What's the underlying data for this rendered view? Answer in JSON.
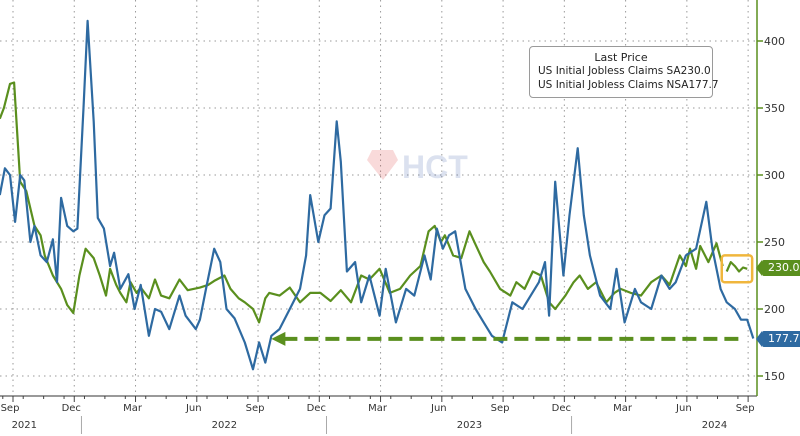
{
  "colors": {
    "sa": "#5a8f1e",
    "nsa": "#2e6aa1",
    "highlight": "#f0b63c",
    "grid": "#9a9a9a"
  },
  "legend": {
    "title": "Last Price",
    "items": [
      {
        "name": "US Initial Jobless Claims SA",
        "value": "230.0"
      },
      {
        "name": "US Initial Jobless Claims NSA",
        "value": "177.7"
      }
    ]
  },
  "tags": {
    "sa": "230.0",
    "nsa": "177.7"
  },
  "chart_data": {
    "type": "line",
    "title": "",
    "xlabel": "",
    "ylabel": "",
    "x_units": "months since Sep 2021",
    "ylim": [
      140,
      420
    ],
    "yticks": [
      150,
      200,
      250,
      300,
      350,
      400
    ],
    "grid": true,
    "legend_position": "top-right",
    "xticks": [
      {
        "m": 0,
        "label": "Sep"
      },
      {
        "m": 3,
        "label": "Dec"
      },
      {
        "m": 6,
        "label": "Mar"
      },
      {
        "m": 9,
        "label": "Jun"
      },
      {
        "m": 12,
        "label": "Sep"
      },
      {
        "m": 15,
        "label": "Dec"
      },
      {
        "m": 18,
        "label": "Mar"
      },
      {
        "m": 21,
        "label": "Jun"
      },
      {
        "m": 24,
        "label": "Sep"
      },
      {
        "m": 27,
        "label": "Dec"
      },
      {
        "m": 30,
        "label": "Mar"
      },
      {
        "m": 33,
        "label": "Jun"
      },
      {
        "m": 36,
        "label": "Sep"
      }
    ],
    "years": [
      {
        "m": 0.7,
        "label": "2021"
      },
      {
        "m": 10.5,
        "label": "2022"
      },
      {
        "m": 22.5,
        "label": "2023"
      },
      {
        "m": 34.5,
        "label": "2024"
      }
    ],
    "year_dividers": [
      3.5,
      15.5,
      27.5
    ],
    "reference_line": {
      "value": 177.7,
      "from_m": 12.8,
      "to_m": 36
    },
    "series": [
      {
        "name": "US Initial Jobless Claims SA",
        "key": "sa",
        "points": [
          [
            -0.5,
            342
          ],
          [
            -0.3,
            350
          ],
          [
            0,
            368
          ],
          [
            0.2,
            369
          ],
          [
            0.5,
            295
          ],
          [
            0.8,
            288
          ],
          [
            1.2,
            262
          ],
          [
            1.5,
            255
          ],
          [
            1.7,
            240
          ],
          [
            2.1,
            225
          ],
          [
            2.5,
            215
          ],
          [
            2.8,
            203
          ],
          [
            3.1,
            197
          ],
          [
            3.4,
            225
          ],
          [
            3.7,
            245
          ],
          [
            4.1,
            238
          ],
          [
            4.4,
            225
          ],
          [
            4.7,
            210
          ],
          [
            4.9,
            230
          ],
          [
            5.2,
            218
          ],
          [
            5.4,
            212
          ],
          [
            5.7,
            205
          ],
          [
            5.9,
            220
          ],
          [
            6.2,
            212
          ],
          [
            6.4,
            216
          ],
          [
            6.8,
            208
          ],
          [
            7.1,
            222
          ],
          [
            7.4,
            210
          ],
          [
            7.8,
            208
          ],
          [
            8.3,
            222
          ],
          [
            8.7,
            214
          ],
          [
            9.3,
            216
          ],
          [
            9.7,
            218
          ],
          [
            10,
            221
          ],
          [
            10.5,
            225
          ],
          [
            10.8,
            215
          ],
          [
            11.2,
            208
          ],
          [
            11.5,
            205
          ],
          [
            11.9,
            200
          ],
          [
            12.2,
            190
          ],
          [
            12.5,
            208
          ],
          [
            12.7,
            212
          ],
          [
            13.2,
            210
          ],
          [
            13.7,
            216
          ],
          [
            14.2,
            205
          ],
          [
            14.7,
            212
          ],
          [
            15.2,
            212
          ],
          [
            15.7,
            206
          ],
          [
            16.2,
            214
          ],
          [
            16.7,
            205
          ],
          [
            17.2,
            225
          ],
          [
            17.6,
            222
          ],
          [
            18.1,
            230
          ],
          [
            18.6,
            212
          ],
          [
            19.1,
            215
          ],
          [
            19.6,
            225
          ],
          [
            20.1,
            232
          ],
          [
            20.5,
            258
          ],
          [
            20.8,
            262
          ],
          [
            21.1,
            250
          ],
          [
            21.3,
            255
          ],
          [
            21.7,
            240
          ],
          [
            22.1,
            238
          ],
          [
            22.5,
            258
          ],
          [
            22.8,
            248
          ],
          [
            23.2,
            235
          ],
          [
            23.5,
            228
          ],
          [
            24,
            215
          ],
          [
            24.5,
            210
          ],
          [
            24.8,
            220
          ],
          [
            25.2,
            215
          ],
          [
            25.6,
            228
          ],
          [
            26,
            225
          ],
          [
            26.4,
            205
          ],
          [
            26.7,
            200
          ],
          [
            27.2,
            210
          ],
          [
            27.6,
            220
          ],
          [
            27.9,
            225
          ],
          [
            28.3,
            215
          ],
          [
            28.7,
            220
          ],
          [
            29.2,
            205
          ],
          [
            29.6,
            212
          ],
          [
            29.9,
            215
          ],
          [
            30.4,
            212
          ],
          [
            30.9,
            210
          ],
          [
            31.4,
            220
          ],
          [
            31.9,
            225
          ],
          [
            32.3,
            218
          ],
          [
            32.8,
            240
          ],
          [
            33.1,
            232
          ],
          [
            33.3,
            245
          ],
          [
            33.6,
            230
          ],
          [
            33.8,
            247
          ],
          [
            34.2,
            235
          ],
          [
            34.6,
            249
          ],
          [
            34.9,
            232
          ]
        ]
      },
      {
        "name": "US Initial Jobless Claims SA (latest)",
        "key": "sa_recent",
        "points": [
          [
            35.1,
            228
          ],
          [
            35.3,
            235
          ],
          [
            35.5,
            232
          ],
          [
            35.7,
            228
          ],
          [
            35.9,
            231
          ],
          [
            36.1,
            230
          ]
        ]
      },
      {
        "name": "US Initial Jobless Claims NSA",
        "key": "nsa",
        "points": [
          [
            -0.5,
            285
          ],
          [
            -0.25,
            305
          ],
          [
            0,
            300
          ],
          [
            0.25,
            265
          ],
          [
            0.5,
            300
          ],
          [
            0.7,
            296
          ],
          [
            1,
            250
          ],
          [
            1.2,
            262
          ],
          [
            1.5,
            240
          ],
          [
            1.8,
            235
          ],
          [
            2.1,
            252
          ],
          [
            2.3,
            220
          ],
          [
            2.5,
            283
          ],
          [
            2.8,
            262
          ],
          [
            3.1,
            258
          ],
          [
            3.3,
            260
          ],
          [
            3.6,
            350
          ],
          [
            3.6,
            350
          ],
          [
            3.8,
            415
          ],
          [
            4.1,
            340
          ],
          [
            4.3,
            268
          ],
          [
            4.6,
            260
          ],
          [
            4.9,
            232
          ],
          [
            5.1,
            242
          ],
          [
            5.4,
            215
          ],
          [
            5.8,
            226
          ],
          [
            6.1,
            200
          ],
          [
            6.4,
            218
          ],
          [
            6.8,
            180
          ],
          [
            7.1,
            200
          ],
          [
            7.4,
            198
          ],
          [
            7.8,
            185
          ],
          [
            8.3,
            210
          ],
          [
            8.6,
            195
          ],
          [
            9.1,
            185
          ],
          [
            9.3,
            192
          ],
          [
            9.6,
            215
          ],
          [
            10,
            245
          ],
          [
            10.3,
            235
          ],
          [
            10.6,
            200
          ],
          [
            11,
            193
          ],
          [
            11.5,
            175
          ],
          [
            11.9,
            155
          ],
          [
            12.2,
            175
          ],
          [
            12.5,
            160
          ],
          [
            12.8,
            180
          ],
          [
            13.2,
            185
          ],
          [
            13.7,
            200
          ],
          [
            14.2,
            215
          ],
          [
            14.5,
            240
          ],
          [
            14.7,
            285
          ],
          [
            15.1,
            250
          ],
          [
            15.4,
            270
          ],
          [
            15.7,
            275
          ],
          [
            16,
            340
          ],
          [
            16.2,
            310
          ],
          [
            16.5,
            228
          ],
          [
            16.9,
            235
          ],
          [
            17.2,
            205
          ],
          [
            17.6,
            225
          ],
          [
            18.1,
            195
          ],
          [
            18.4,
            230
          ],
          [
            18.9,
            190
          ],
          [
            19.4,
            215
          ],
          [
            19.8,
            210
          ],
          [
            20.3,
            240
          ],
          [
            20.6,
            222
          ],
          [
            20.9,
            260
          ],
          [
            21.2,
            245
          ],
          [
            21.5,
            255
          ],
          [
            21.8,
            258
          ],
          [
            22.3,
            215
          ],
          [
            22.8,
            200
          ],
          [
            23.2,
            190
          ],
          [
            23.6,
            180
          ],
          [
            24.1,
            175
          ],
          [
            24.6,
            205
          ],
          [
            25.1,
            200
          ],
          [
            25.5,
            210
          ],
          [
            25.9,
            220
          ],
          [
            26.2,
            235
          ],
          [
            26.4,
            195
          ],
          [
            26.7,
            295
          ],
          [
            27.1,
            225
          ],
          [
            27.4,
            270
          ],
          [
            27.8,
            320
          ],
          [
            28.1,
            270
          ],
          [
            28.4,
            240
          ],
          [
            28.9,
            210
          ],
          [
            29.4,
            200
          ],
          [
            29.7,
            230
          ],
          [
            30.1,
            190
          ],
          [
            30.6,
            215
          ],
          [
            30.9,
            205
          ],
          [
            31.4,
            200
          ],
          [
            31.9,
            225
          ],
          [
            32.3,
            215
          ],
          [
            32.6,
            220
          ],
          [
            33.1,
            240
          ],
          [
            33.6,
            245
          ],
          [
            34.1,
            280
          ],
          [
            34.4,
            245
          ],
          [
            34.8,
            215
          ],
          [
            35.1,
            205
          ],
          [
            35.5,
            200
          ],
          [
            35.8,
            192
          ],
          [
            36.1,
            192
          ],
          [
            36.4,
            178
          ]
        ]
      }
    ]
  }
}
